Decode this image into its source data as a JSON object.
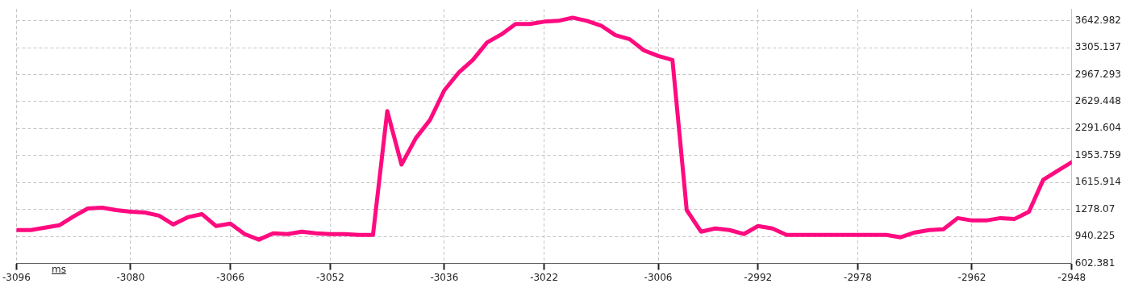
{
  "chart_data": {
    "type": "line",
    "xlabel": "ms",
    "x": [
      -3096,
      -3094,
      -3092,
      -3090,
      -3088,
      -3086,
      -3084,
      -3082,
      -3080,
      -3078,
      -3076,
      -3074,
      -3072,
      -3070,
      -3068,
      -3066,
      -3064,
      -3062,
      -3060,
      -3058,
      -3056,
      -3054,
      -3052,
      -3050,
      -3048,
      -3046,
      -3044,
      -3042,
      -3040,
      -3038,
      -3036,
      -3034,
      -3032,
      -3030,
      -3028,
      -3026,
      -3024,
      -3022,
      -3020,
      -3018,
      -3016,
      -3014,
      -3012,
      -3010,
      -3008,
      -3006,
      -3004,
      -3002,
      -3000,
      -2998,
      -2996,
      -2994,
      -2992,
      -2990,
      -2988,
      -2986,
      -2984,
      -2982,
      -2980,
      -2978,
      -2976,
      -2974,
      -2972,
      -2970,
      -2968,
      -2966,
      -2964,
      -2962,
      -2960,
      -2958,
      -2956,
      -2954,
      -2952,
      -2950,
      -2948
    ],
    "series": [
      {
        "color": "#ff0a7f",
        "values": [
          1020,
          1020,
          1050,
          1080,
          1190,
          1290,
          1300,
          1270,
          1250,
          1240,
          1200,
          1090,
          1180,
          1220,
          1070,
          1100,
          970,
          900,
          980,
          970,
          1000,
          980,
          970,
          970,
          960,
          960,
          2510,
          1840,
          2170,
          2400,
          2770,
          2990,
          3150,
          3370,
          3470,
          3600,
          3600,
          3630,
          3640,
          3680,
          3640,
          3580,
          3460,
          3410,
          3270,
          3200,
          3150,
          1270,
          1000,
          1040,
          1020,
          970,
          1070,
          1040,
          960,
          960,
          960,
          960,
          960,
          960,
          960,
          960,
          930,
          990,
          1020,
          1030,
          1170,
          1140,
          1140,
          1170,
          1160,
          1250,
          1650,
          1760,
          1870
        ]
      }
    ],
    "xlim": [
      -3096,
      -2948
    ],
    "xticks": [
      -3096,
      -3080,
      -3066,
      -3052,
      -3036,
      -3022,
      -3006,
      -2992,
      -2978,
      -2962,
      -2948
    ],
    "ylim": [
      602.381,
      3788
    ],
    "yticks": [
      602.381,
      940.225,
      1278.07,
      1615.914,
      1953.759,
      2291.604,
      2629.448,
      2967.293,
      3305.137,
      3642.982
    ],
    "grid": true,
    "legend": false,
    "marker": "none",
    "line_style": "solid"
  }
}
